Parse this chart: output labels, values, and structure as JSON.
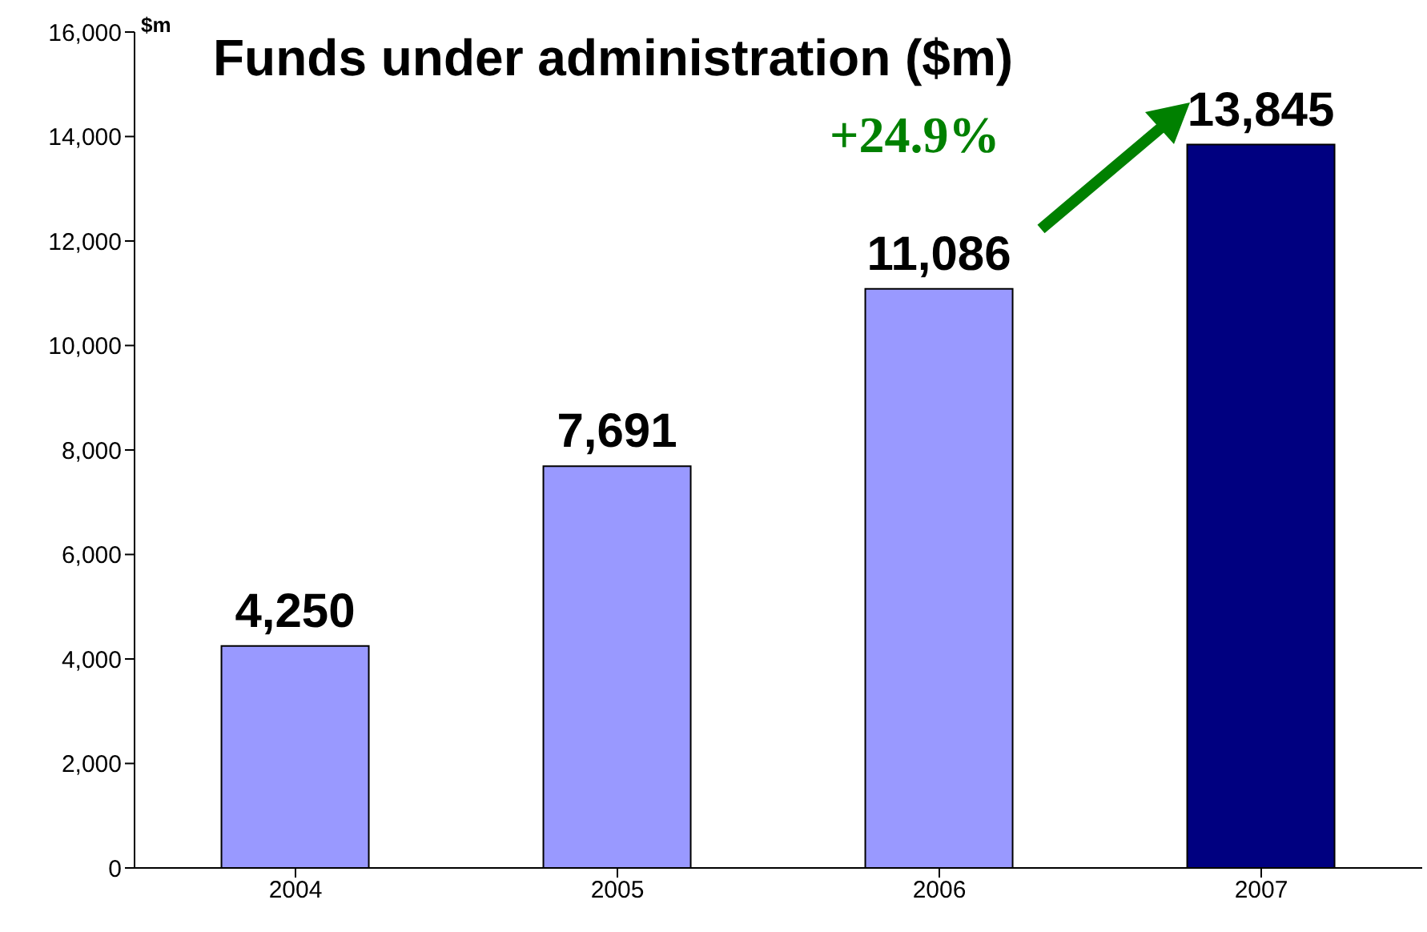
{
  "chart_data": {
    "type": "bar",
    "title": "Funds under administration ($m)",
    "ylabel": "$m",
    "categories": [
      "2004",
      "2005",
      "2006",
      "2007"
    ],
    "values": [
      4250,
      7691,
      11086,
      13845
    ],
    "value_labels": [
      "4,250",
      "7,691",
      "11,086",
      "13,845"
    ],
    "colors": [
      "#9999ff",
      "#9999ff",
      "#9999ff",
      "#000080"
    ],
    "ylim": [
      0,
      16000
    ],
    "yticks": [
      0,
      {
        "value": 2000,
        "label": "2,000"
      },
      {
        "value": 4000,
        "label": "4,000"
      },
      {
        "value": 6000,
        "label": "6,000"
      },
      {
        "value": 8000,
        "label": "8,000"
      },
      {
        "value": 10000,
        "label": "10,000"
      },
      {
        "value": 12000,
        "label": "12,000"
      },
      {
        "value": 14000,
        "label": "14,000"
      },
      {
        "value": 16000,
        "label": "16,000"
      }
    ],
    "grid": false,
    "legend": false,
    "annotations": [
      "+24.9%"
    ]
  }
}
